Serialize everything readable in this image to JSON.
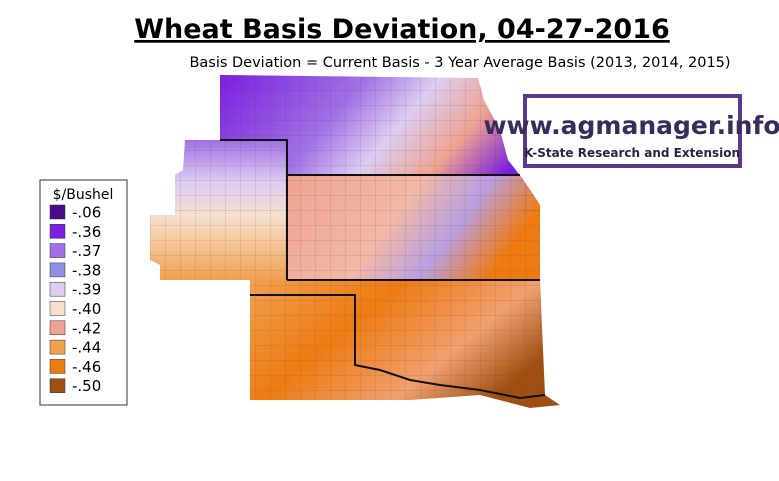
{
  "header": {
    "title": "Wheat Basis Deviation, 04-27-2016",
    "subtitle": "Basis Deviation = Current Basis - 3 Year Average Basis (2013, 2014, 2015)"
  },
  "legend": {
    "title": "$/Bushel",
    "items": [
      {
        "label": "-.06",
        "color": "#4a0b8a"
      },
      {
        "label": "-.36",
        "color": "#7b1fe0"
      },
      {
        "label": "-.37",
        "color": "#a070e4"
      },
      {
        "label": "-.38",
        "color": "#8f8fe6"
      },
      {
        "label": "-.39",
        "color": "#dccdf2"
      },
      {
        "label": "-.40",
        "color": "#f7dfcc"
      },
      {
        "label": "-.42",
        "color": "#eea391"
      },
      {
        "label": "-.44",
        "color": "#f0a150"
      },
      {
        "label": "-.46",
        "color": "#ee7b12"
      },
      {
        "label": "-.50",
        "color": "#a04f12"
      }
    ]
  },
  "logo": {
    "url": "www.agmanager.info",
    "org": "K-State Research and Extension"
  }
}
